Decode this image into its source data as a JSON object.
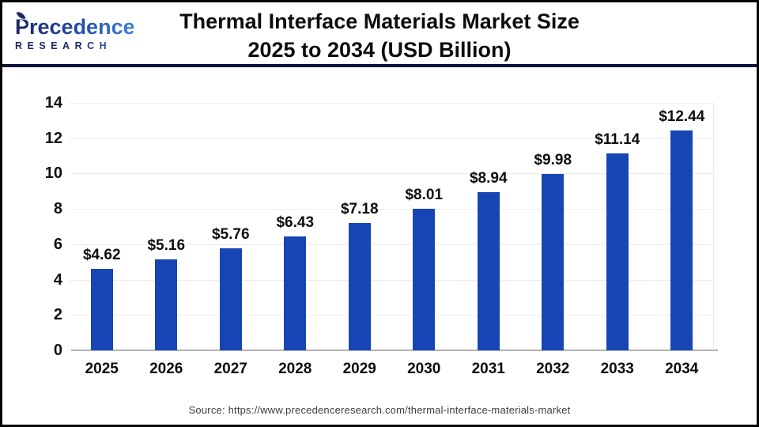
{
  "header": {
    "logo_line1": "Precedence",
    "logo_line2": "RESEARCH",
    "title_line1": "Thermal Interface Materials Market Size",
    "title_line2": "2025 to 2034 (USD Billion)"
  },
  "chart_data": {
    "type": "bar",
    "title": "Thermal Interface Materials Market Size 2025 to 2034 (USD Billion)",
    "categories": [
      "2025",
      "2026",
      "2027",
      "2028",
      "2029",
      "2030",
      "2031",
      "2032",
      "2033",
      "2034"
    ],
    "values": [
      4.62,
      5.16,
      5.76,
      6.43,
      7.18,
      8.01,
      8.94,
      9.98,
      11.14,
      12.44
    ],
    "bar_labels": [
      "$4.62",
      "$5.16",
      "$5.76",
      "$6.43",
      "$7.18",
      "$8.01",
      "$8.94",
      "$9.98",
      "$11.14",
      "$12.44"
    ],
    "xlabel": "",
    "ylabel": "",
    "ylim": [
      0,
      14
    ],
    "yticks": [
      0,
      2,
      4,
      6,
      8,
      10,
      12,
      14
    ],
    "grid": "horizontal",
    "legend": "none",
    "bar_color": "#1746b4"
  },
  "footer": {
    "source": "Source: https://www.precedenceresearch.com/thermal-interface-materials-market"
  },
  "colors": {
    "bar": "#1746b4",
    "divider_navy": "#10123d",
    "gridline": "#ececec",
    "axis_baseline": "#b3b3b3",
    "title_text": "#0d0d0d",
    "source_text": "#3d3d3d",
    "logo_navy": "#1b2766",
    "logo_blue": "#3f7fd9"
  }
}
